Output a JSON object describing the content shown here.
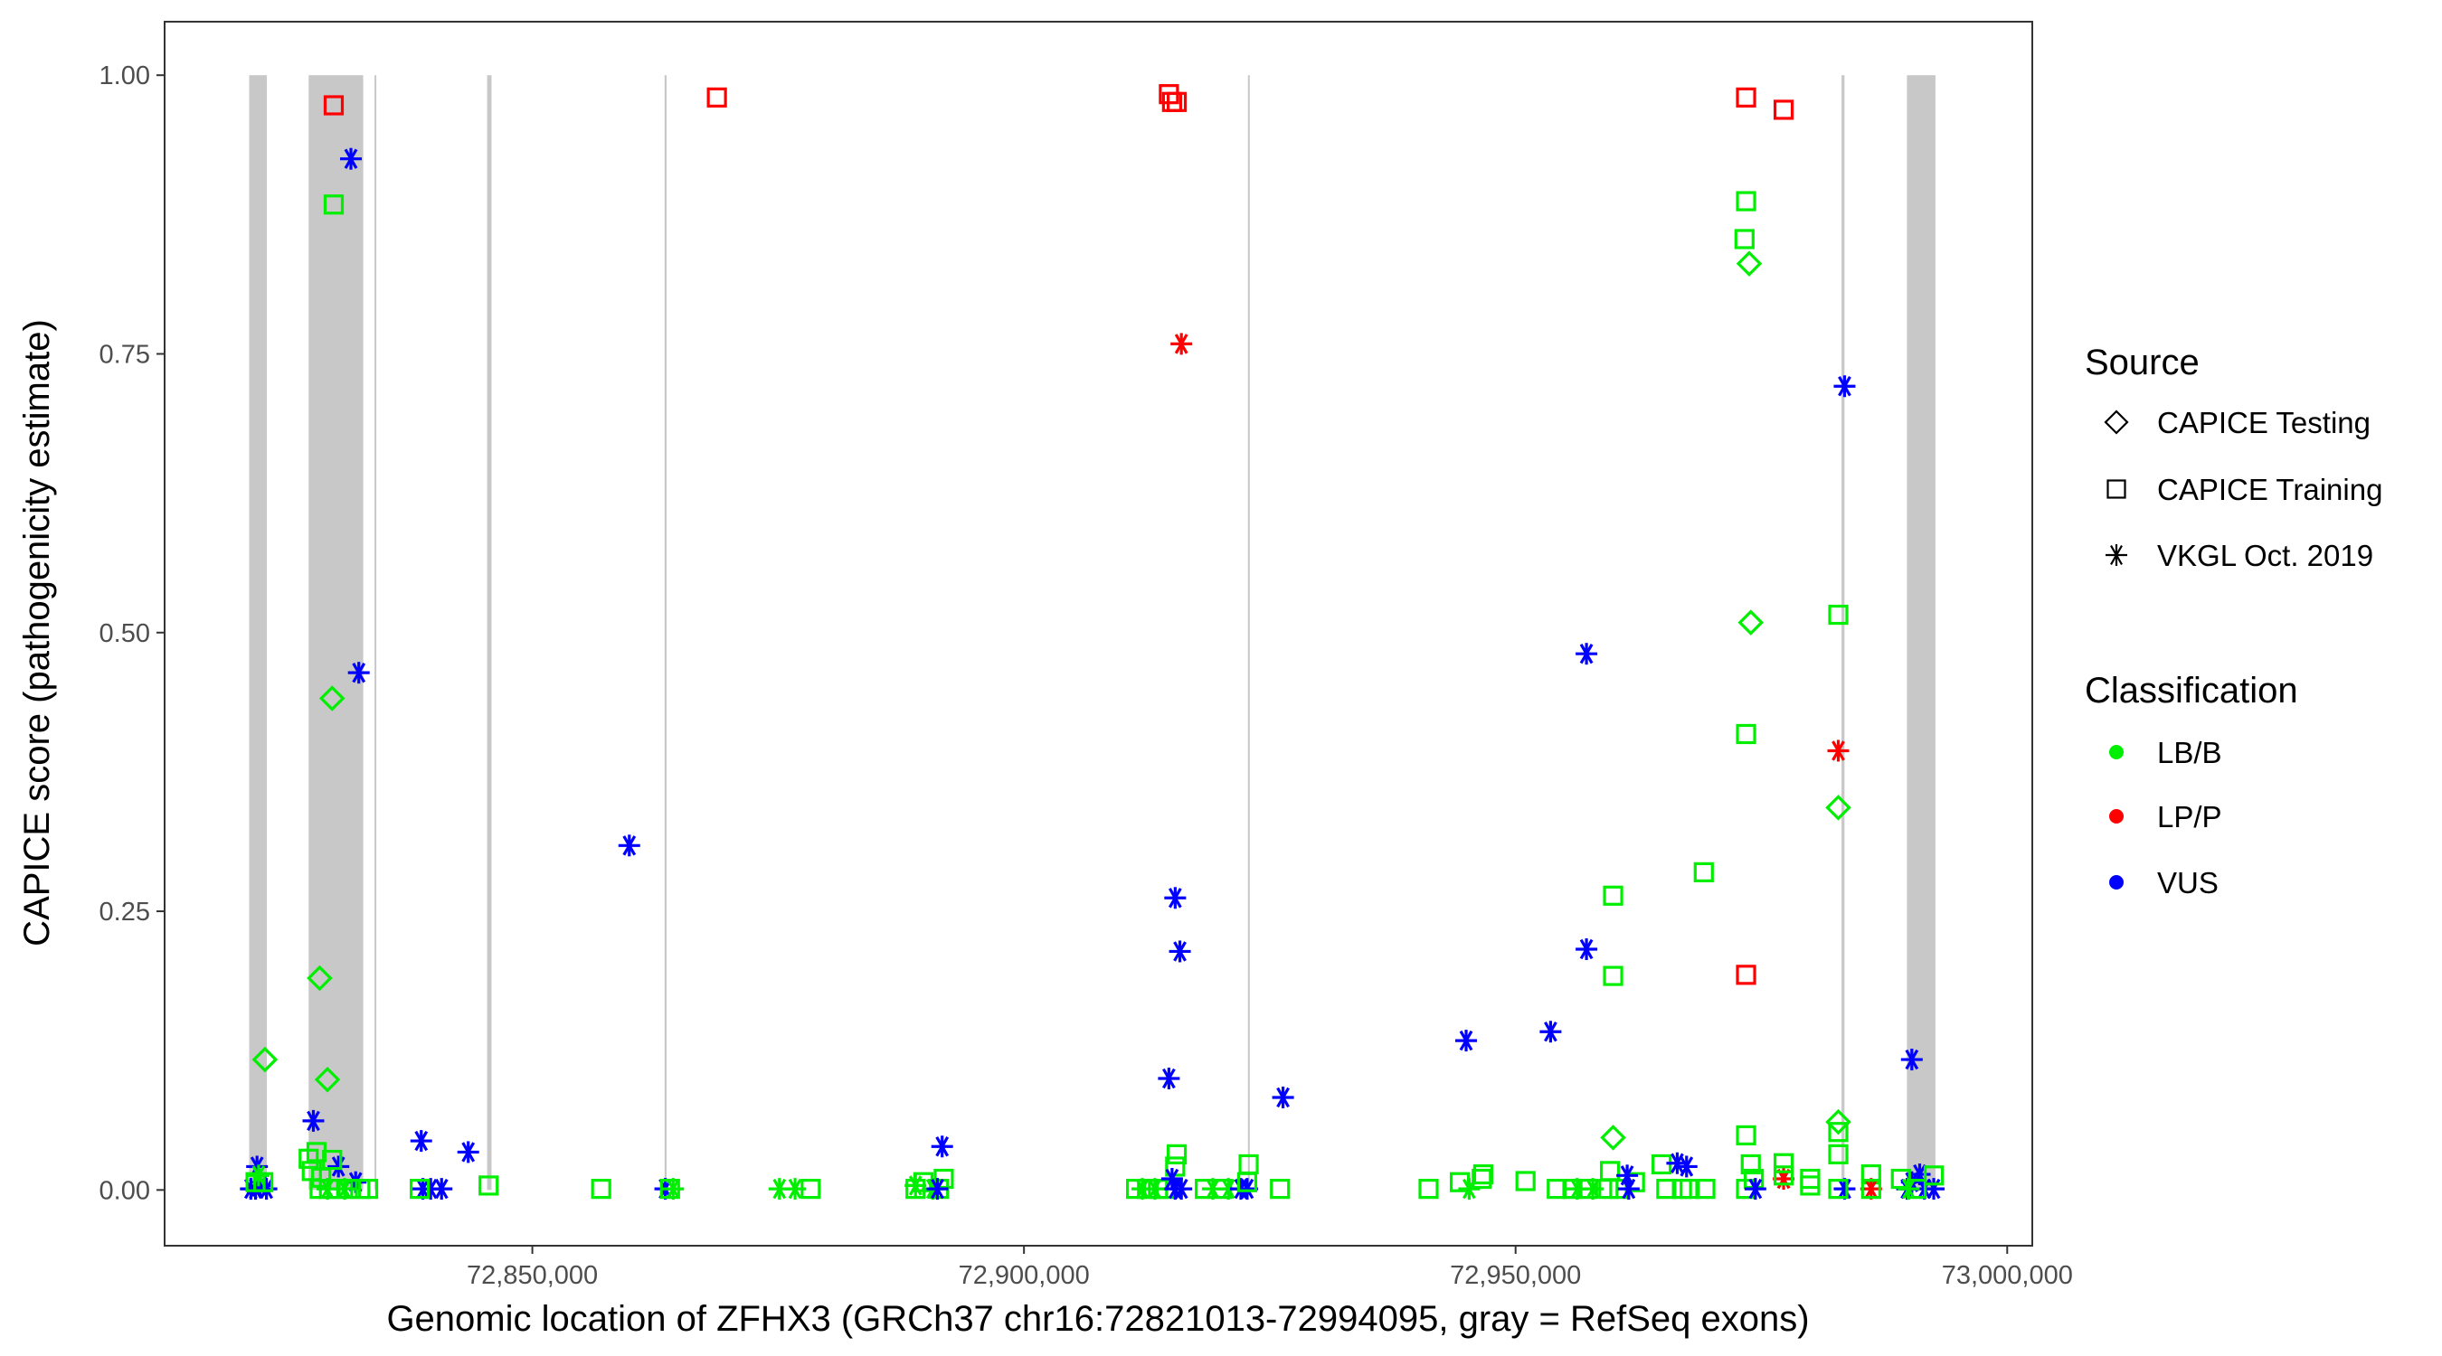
{
  "chart_data": {
    "type": "scatter",
    "xlabel": "Genomic location of ZFHX3 (GRCh37 chr16:72821013-72994095, gray = RefSeq exons)",
    "ylabel": "CAPICE score (pathogenicity estimate)",
    "xlim": [
      72812600,
      73002550
    ],
    "ylim": [
      -0.05,
      1.048
    ],
    "grid": false,
    "x_ticks": [
      72850000,
      72900000,
      72950000,
      73000000
    ],
    "x_tick_labels": [
      "72,850,000",
      "72,900,000",
      "72,950,000",
      "73,000,000"
    ],
    "y_ticks": [
      0,
      0.25,
      0.5,
      0.75,
      1.0
    ],
    "y_tick_labels": [
      "0.00",
      "0.25",
      "0.50",
      "0.75",
      "1.00"
    ],
    "exons": [
      [
        72821200,
        72823000
      ],
      [
        72827250,
        72832800
      ],
      [
        72833950,
        72834100
      ],
      [
        72845400,
        72845850
      ],
      [
        72863450,
        72863650
      ],
      [
        72922780,
        72922950
      ],
      [
        72983150,
        72983450
      ],
      [
        72989800,
        72992700
      ]
    ],
    "exon_color": "#c8c8c8",
    "legend_placement": "right",
    "legend": {
      "source_title": "Source",
      "sources": [
        {
          "key": "T",
          "label": "CAPICE Testing",
          "shape": "diamond"
        },
        {
          "key": "R",
          "label": "CAPICE Training",
          "shape": "square"
        },
        {
          "key": "V",
          "label": "VKGL Oct. 2019",
          "shape": "asterisk"
        }
      ],
      "class_title": "Classification",
      "classes": [
        {
          "key": "B",
          "label": "LB/B",
          "color": "#00ee00"
        },
        {
          "key": "P",
          "label": "LP/P",
          "color": "#ff0000"
        },
        {
          "key": "U",
          "label": "VUS",
          "color": "#0000ff"
        }
      ]
    },
    "points_format": [
      "position",
      "score",
      "source",
      "classification"
    ],
    "points": [
      [
        72829800,
        0.973,
        "R",
        "P"
      ],
      [
        72831550,
        0.925,
        "V",
        "U"
      ],
      [
        72829800,
        0.884,
        "R",
        "B"
      ],
      [
        72832350,
        0.464,
        "V",
        "U"
      ],
      [
        72829640,
        0.441,
        "T",
        "B"
      ],
      [
        72828370,
        0.19,
        "T",
        "B"
      ],
      [
        72829160,
        0.099,
        "T",
        "B"
      ],
      [
        72822800,
        0.117,
        "T",
        "B"
      ],
      [
        72827730,
        0.062,
        "V",
        "U"
      ],
      [
        72822000,
        0.021,
        "V",
        "U"
      ],
      [
        72830280,
        0.021,
        "V",
        "U"
      ],
      [
        72832030,
        0.007,
        "V",
        "U"
      ],
      [
        72827250,
        0.028,
        "R",
        "B"
      ],
      [
        72827570,
        0.017,
        "R",
        "B"
      ],
      [
        72828050,
        0.034,
        "R",
        "B"
      ],
      [
        72828530,
        0.011,
        "R",
        "B"
      ],
      [
        72829640,
        0.027,
        "R",
        "B"
      ],
      [
        72828370,
        0.001,
        "R",
        "B"
      ],
      [
        72829320,
        0.001,
        "R",
        "B"
      ],
      [
        72830120,
        0.001,
        "R",
        "B"
      ],
      [
        72831230,
        0.001,
        "R",
        "B"
      ],
      [
        72832500,
        0.001,
        "R",
        "B"
      ],
      [
        72833300,
        0.001,
        "R",
        "B"
      ],
      [
        72829160,
        0.001,
        "V",
        "B"
      ],
      [
        72830910,
        0.001,
        "V",
        "B"
      ],
      [
        72821370,
        0.001,
        "V",
        "U"
      ],
      [
        72821850,
        0.001,
        "V",
        "U"
      ],
      [
        72822320,
        0.004,
        "V",
        "U"
      ],
      [
        72822960,
        0.001,
        "V",
        "U"
      ],
      [
        72821850,
        0.007,
        "R",
        "B"
      ],
      [
        72822640,
        0.007,
        "R",
        "B"
      ],
      [
        72822160,
        0.013,
        "V",
        "B"
      ],
      [
        72838700,
        0.044,
        "V",
        "U"
      ],
      [
        72838870,
        0.001,
        "V",
        "U"
      ],
      [
        72839660,
        0.001,
        "V",
        "U"
      ],
      [
        72840770,
        0.001,
        "V",
        "U"
      ],
      [
        72838550,
        0.001,
        "R",
        "B"
      ],
      [
        72843480,
        0.034,
        "V",
        "U"
      ],
      [
        72845550,
        0.004,
        "R",
        "B"
      ],
      [
        72859860,
        0.309,
        "V",
        "U"
      ],
      [
        72868770,
        0.98,
        "R",
        "P"
      ],
      [
        72863520,
        0.001,
        "V",
        "U"
      ],
      [
        72864320,
        0.001,
        "V",
        "B"
      ],
      [
        72864000,
        0.001,
        "R",
        "B"
      ],
      [
        72857000,
        0.001,
        "R",
        "B"
      ],
      [
        72875130,
        0.001,
        "V",
        "B"
      ],
      [
        72876720,
        0.001,
        "V",
        "B"
      ],
      [
        72878310,
        0.001,
        "R",
        "B"
      ],
      [
        72891680,
        0.039,
        "V",
        "U"
      ],
      [
        72888970,
        0.001,
        "R",
        "B"
      ],
      [
        72889770,
        0.007,
        "R",
        "B"
      ],
      [
        72891840,
        0.01,
        "R",
        "B"
      ],
      [
        72891360,
        0.001,
        "R",
        "B"
      ],
      [
        72888970,
        0.004,
        "V",
        "B"
      ],
      [
        72890720,
        0.001,
        "V",
        "B"
      ],
      [
        72891200,
        0.001,
        "V",
        "U"
      ],
      [
        72914740,
        0.983,
        "R",
        "P"
      ],
      [
        72915060,
        0.976,
        "R",
        "P"
      ],
      [
        72915540,
        0.976,
        "R",
        "P"
      ],
      [
        72916010,
        0.759,
        "V",
        "P"
      ],
      [
        72915380,
        0.262,
        "V",
        "U"
      ],
      [
        72915860,
        0.214,
        "V",
        "U"
      ],
      [
        72914740,
        0.1,
        "V",
        "U"
      ],
      [
        72915540,
        0.032,
        "R",
        "B"
      ],
      [
        72915380,
        0.021,
        "R",
        "B"
      ],
      [
        72911400,
        0.001,
        "R",
        "B"
      ],
      [
        72912520,
        0.001,
        "R",
        "B"
      ],
      [
        72913630,
        0.001,
        "R",
        "B"
      ],
      [
        72914420,
        0.001,
        "R",
        "B"
      ],
      [
        72912040,
        0.001,
        "V",
        "B"
      ],
      [
        72913310,
        0.001,
        "V",
        "B"
      ],
      [
        72915060,
        0.01,
        "V",
        "U"
      ],
      [
        72915380,
        0.001,
        "V",
        "U"
      ],
      [
        72916010,
        0.001,
        "V",
        "U"
      ],
      [
        72918400,
        0.001,
        "R",
        "B"
      ],
      [
        72920150,
        0.001,
        "R",
        "B"
      ],
      [
        72919200,
        0.001,
        "V",
        "B"
      ],
      [
        72920790,
        0.001,
        "V",
        "B"
      ],
      [
        72922060,
        0.001,
        "V",
        "U"
      ],
      [
        72922700,
        0.001,
        "V",
        "U"
      ],
      [
        72922850,
        0.023,
        "R",
        "B"
      ],
      [
        72922700,
        0.007,
        "R",
        "B"
      ],
      [
        72926350,
        0.083,
        "V",
        "U"
      ],
      [
        72926040,
        0.001,
        "R",
        "B"
      ],
      [
        72941150,
        0.001,
        "R",
        "B"
      ],
      [
        72944330,
        0.007,
        "R",
        "B"
      ],
      [
        72945280,
        0.001,
        "V",
        "B"
      ],
      [
        72946710,
        0.014,
        "R",
        "B"
      ],
      [
        72946560,
        0.01,
        "R",
        "B"
      ],
      [
        72951010,
        0.008,
        "R",
        "B"
      ],
      [
        72944970,
        0.134,
        "V",
        "U"
      ],
      [
        72953560,
        0.142,
        "V",
        "U"
      ],
      [
        72957210,
        0.216,
        "V",
        "U"
      ],
      [
        72957210,
        0.481,
        "V",
        "U"
      ],
      [
        72959920,
        0.264,
        "R",
        "B"
      ],
      [
        72959920,
        0.192,
        "R",
        "B"
      ],
      [
        72959920,
        0.047,
        "T",
        "B"
      ],
      [
        72954190,
        0.001,
        "R",
        "B"
      ],
      [
        72955780,
        0.001,
        "R",
        "B"
      ],
      [
        72957370,
        0.001,
        "R",
        "B"
      ],
      [
        72959440,
        0.001,
        "R",
        "B"
      ],
      [
        72959600,
        0.017,
        "R",
        "B"
      ],
      [
        72960550,
        0.001,
        "R",
        "B"
      ],
      [
        72962140,
        0.007,
        "R",
        "B"
      ],
      [
        72956260,
        0.001,
        "V",
        "B"
      ],
      [
        72957850,
        0.001,
        "V",
        "B"
      ],
      [
        72961350,
        0.013,
        "V",
        "U"
      ],
      [
        72961510,
        0.001,
        "V",
        "U"
      ],
      [
        72964850,
        0.023,
        "R",
        "B"
      ],
      [
        72965330,
        0.001,
        "R",
        "B"
      ],
      [
        72966920,
        0.001,
        "R",
        "B"
      ],
      [
        72967710,
        0.001,
        "R",
        "B"
      ],
      [
        72969300,
        0.001,
        "R",
        "B"
      ],
      [
        72966440,
        0.024,
        "V",
        "U"
      ],
      [
        72967390,
        0.021,
        "V",
        "U"
      ],
      [
        72969140,
        0.285,
        "R",
        "B"
      ],
      [
        72973440,
        0.98,
        "R",
        "P"
      ],
      [
        72973440,
        0.887,
        "R",
        "B"
      ],
      [
        72973280,
        0.853,
        "R",
        "B"
      ],
      [
        72973760,
        0.831,
        "T",
        "B"
      ],
      [
        72973920,
        0.509,
        "T",
        "B"
      ],
      [
        72973440,
        0.409,
        "R",
        "B"
      ],
      [
        72973440,
        0.193,
        "R",
        "P"
      ],
      [
        72973440,
        0.049,
        "R",
        "B"
      ],
      [
        72973920,
        0.023,
        "R",
        "B"
      ],
      [
        72974230,
        0.01,
        "R",
        "B"
      ],
      [
        72973440,
        0.001,
        "R",
        "B"
      ],
      [
        72974390,
        0.001,
        "V",
        "U"
      ],
      [
        72977260,
        0.969,
        "R",
        "P"
      ],
      [
        72977260,
        0.01,
        "V",
        "P"
      ],
      [
        72977260,
        0.024,
        "R",
        "B"
      ],
      [
        72977260,
        0.013,
        "R",
        "B"
      ],
      [
        72979960,
        0.01,
        "R",
        "B"
      ],
      [
        72979960,
        0.004,
        "R",
        "B"
      ],
      [
        72982820,
        0.516,
        "R",
        "B"
      ],
      [
        72982820,
        0.394,
        "V",
        "P"
      ],
      [
        72982820,
        0.343,
        "T",
        "B"
      ],
      [
        72982820,
        0.061,
        "T",
        "B"
      ],
      [
        72982820,
        0.052,
        "R",
        "B"
      ],
      [
        72982820,
        0.032,
        "R",
        "B"
      ],
      [
        72983460,
        0.721,
        "V",
        "U"
      ],
      [
        72983460,
        0.001,
        "V",
        "U"
      ],
      [
        72982820,
        0.001,
        "R",
        "B"
      ],
      [
        72986160,
        0.014,
        "R",
        "B"
      ],
      [
        72986160,
        0.001,
        "V",
        "P"
      ],
      [
        72986160,
        0.001,
        "R",
        "B"
      ],
      [
        72990300,
        0.117,
        "V",
        "U"
      ],
      [
        72991100,
        0.014,
        "V",
        "U"
      ],
      [
        72990300,
        0.007,
        "V",
        "U"
      ],
      [
        72989820,
        0.001,
        "V",
        "U"
      ],
      [
        72991570,
        0.001,
        "V",
        "U"
      ],
      [
        72992530,
        0.001,
        "V",
        "U"
      ],
      [
        72989190,
        0.01,
        "R",
        "B"
      ],
      [
        72992530,
        0.013,
        "R",
        "B"
      ],
      [
        72990780,
        0.001,
        "R",
        "B"
      ],
      [
        72989980,
        0.001,
        "V",
        "B"
      ]
    ]
  }
}
